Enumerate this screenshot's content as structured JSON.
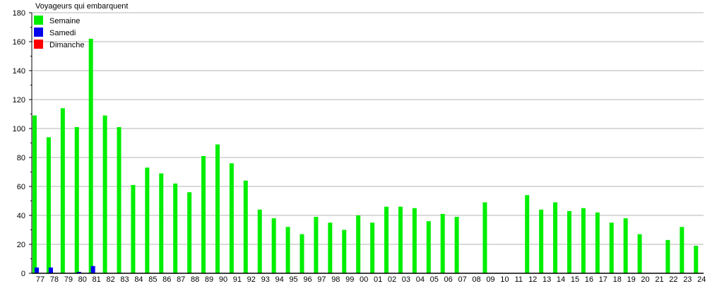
{
  "chart_data": {
    "type": "bar",
    "title": "Voyageurs qui embarquent",
    "xlabel": "",
    "ylabel": "",
    "ylim": [
      0,
      180
    ],
    "yticks": [
      0,
      20,
      40,
      60,
      80,
      100,
      120,
      140,
      160,
      180
    ],
    "grid": true,
    "legend_position": "top-left",
    "categories": [
      "77",
      "78",
      "79",
      "80",
      "81",
      "82",
      "83",
      "84",
      "85",
      "86",
      "87",
      "88",
      "89",
      "90",
      "91",
      "92",
      "93",
      "94",
      "95",
      "96",
      "97",
      "98",
      "99",
      "00",
      "01",
      "02",
      "03",
      "04",
      "05",
      "06",
      "07",
      "08",
      "09",
      "10",
      "11",
      "12",
      "13",
      "14",
      "15",
      "16",
      "17",
      "18",
      "19",
      "20",
      "21",
      "22",
      "23",
      "24"
    ],
    "series": [
      {
        "name": "Semaine",
        "color": "#00ee00",
        "values": [
          109,
          94,
          114,
          101,
          162,
          109,
          101,
          61,
          73,
          69,
          62,
          56,
          81,
          89,
          76,
          64,
          44,
          38,
          32,
          27,
          39,
          35,
          30,
          40,
          35,
          46,
          46,
          45,
          36,
          41,
          39,
          null,
          49,
          null,
          null,
          54,
          44,
          49,
          43,
          45,
          42,
          35,
          38,
          27,
          null,
          23,
          32,
          19
        ]
      },
      {
        "name": "Samedi",
        "color": "#0000ee",
        "values": [
          4,
          4,
          null,
          1,
          5,
          null,
          null,
          null,
          null,
          null,
          null,
          null,
          null,
          null,
          null,
          null,
          null,
          null,
          null,
          null,
          null,
          null,
          null,
          null,
          null,
          null,
          null,
          null,
          null,
          null,
          null,
          null,
          null,
          null,
          null,
          null,
          null,
          null,
          null,
          null,
          null,
          null,
          null,
          null,
          null,
          null,
          null,
          null
        ]
      },
      {
        "name": "Dimanche",
        "color": "#ff0000",
        "values": [
          null,
          null,
          null,
          null,
          null,
          null,
          null,
          null,
          null,
          null,
          null,
          null,
          null,
          null,
          null,
          null,
          null,
          null,
          null,
          null,
          null,
          null,
          null,
          null,
          null,
          null,
          null,
          null,
          null,
          null,
          null,
          null,
          null,
          null,
          null,
          null,
          null,
          null,
          null,
          null,
          null,
          null,
          null,
          null,
          null,
          null,
          null,
          null
        ]
      }
    ]
  }
}
